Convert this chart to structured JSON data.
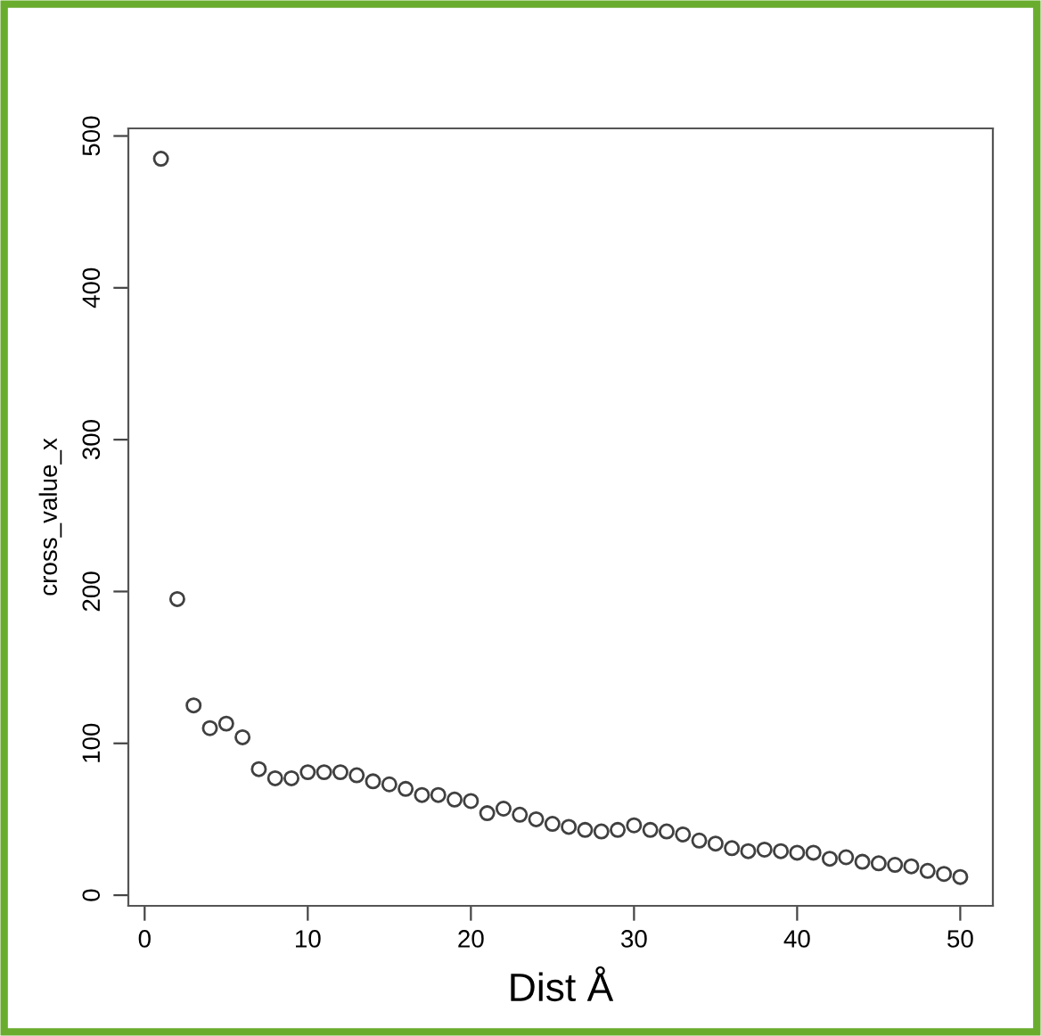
{
  "chart_data": {
    "type": "scatter",
    "xlabel": "Dist Å",
    "ylabel": "cross_value_x",
    "x": [
      1,
      2,
      3,
      4,
      5,
      6,
      7,
      8,
      9,
      10,
      11,
      12,
      13,
      14,
      15,
      16,
      17,
      18,
      19,
      20,
      21,
      22,
      23,
      24,
      25,
      26,
      27,
      28,
      29,
      30,
      31,
      32,
      33,
      34,
      35,
      36,
      37,
      38,
      39,
      40,
      41,
      42,
      43,
      44,
      45,
      46,
      47,
      48,
      49,
      50
    ],
    "series": [
      {
        "color": "#404040",
        "values": [
          485,
          195,
          125,
          110,
          113,
          104,
          83,
          77,
          77,
          81,
          81,
          81,
          79,
          75,
          73,
          70,
          66,
          66,
          63,
          62,
          54,
          57,
          53,
          50,
          47,
          45,
          43,
          42,
          43,
          46,
          43,
          42,
          40,
          36,
          34,
          31,
          29,
          30,
          29,
          28,
          28,
          24,
          25,
          22,
          21,
          20,
          19,
          16,
          14,
          12
        ]
      }
    ],
    "marker": "circle",
    "xlim": [
      -1,
      52
    ],
    "ylim": [
      -7,
      505
    ],
    "xticks": [
      0,
      10,
      20,
      30,
      40,
      50
    ],
    "yticks": [
      0,
      100,
      200,
      300,
      400,
      500
    ],
    "grid": false,
    "legend": false
  }
}
